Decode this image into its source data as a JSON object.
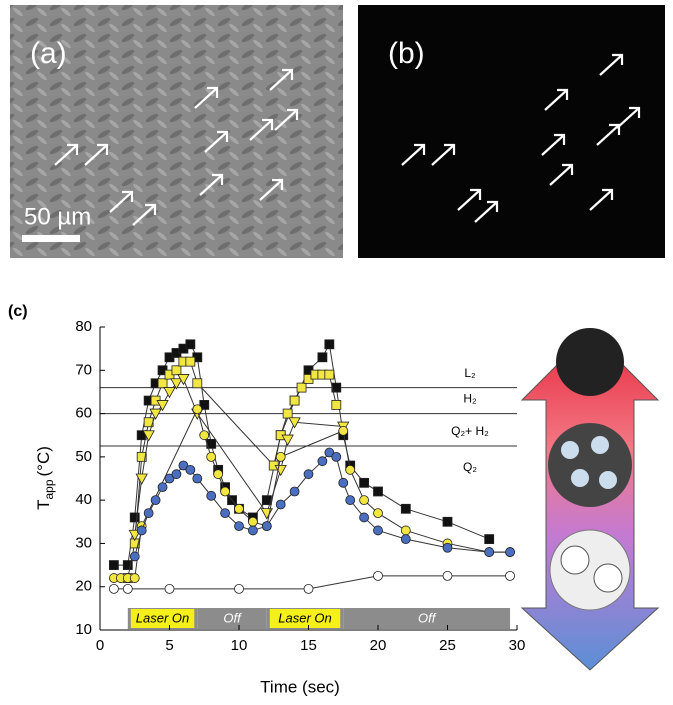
{
  "panels": {
    "a": {
      "label": "(a)",
      "scale_bar": "50 µm"
    },
    "b": {
      "label": "(b)"
    },
    "c": {
      "label": "(c)"
    }
  },
  "chart_data": {
    "type": "line",
    "xlabel": "Time (sec)",
    "ylabel": "T",
    "ylabel_sub": "app",
    "ylabel_unit": "(°C)",
    "xlim": [
      0,
      30
    ],
    "xticks": [
      0,
      5,
      10,
      15,
      20,
      25,
      30
    ],
    "ylim": [
      10,
      80
    ],
    "yticks": [
      10,
      20,
      30,
      40,
      50,
      60,
      70,
      80
    ],
    "phase_lines": [
      {
        "value": 66,
        "label": "L₂"
      },
      {
        "value": 60,
        "label": "H₂"
      },
      {
        "value": 52.5,
        "label": "Q₂+ H₂"
      }
    ],
    "phase_region_label": "Q₂",
    "laser_periods": [
      {
        "label": "Laser On",
        "start": 2,
        "end": 7,
        "color": "#f5ef1a"
      },
      {
        "label": "Off",
        "start": 7,
        "end": 12,
        "color": "#8c8c8c"
      },
      {
        "label": "Laser On",
        "start": 12,
        "end": 17.5,
        "color": "#f5ef1a"
      },
      {
        "label": "Off",
        "start": 17.5,
        "end": 29.5,
        "color": "#8c8c8c"
      }
    ],
    "series": [
      {
        "color": "#111111",
        "marker": "square",
        "x": [
          1,
          2,
          2.5,
          3,
          3.5,
          4,
          4.5,
          5,
          5.5,
          6,
          6.5,
          7,
          7.5,
          8,
          8.5,
          9,
          9.5,
          10,
          11,
          12,
          13,
          14,
          15,
          16,
          16.5,
          17,
          17.5,
          18,
          19,
          20,
          22,
          25,
          28
        ],
        "values": [
          25,
          25,
          36,
          55,
          63,
          67,
          70,
          73,
          74,
          75,
          76,
          73,
          62,
          53,
          47,
          43,
          40,
          38,
          36,
          40,
          55,
          63,
          70,
          73,
          76,
          66,
          55,
          48,
          44,
          42,
          38,
          35,
          31
        ]
      },
      {
        "color": "#f2e640",
        "marker": "square",
        "x": [
          2,
          2.5,
          3,
          3.5,
          4,
          4.5,
          5,
          5.5,
          6,
          6.5,
          7,
          12.5,
          13,
          13.5,
          14,
          14.5,
          15,
          15.5,
          16,
          16.5,
          17
        ],
        "values": [
          22,
          30,
          50,
          58,
          63,
          67,
          69,
          70,
          72,
          72,
          67,
          48,
          55,
          60,
          63,
          66,
          68,
          69,
          69,
          69,
          62
        ]
      },
      {
        "color": "#f2e640",
        "marker": "triangle",
        "x": [
          2.5,
          3,
          3.5,
          4,
          4.5,
          5,
          5.5,
          6,
          7,
          12,
          13,
          13.5,
          14,
          17.5
        ],
        "values": [
          32,
          45,
          55,
          60,
          62,
          65,
          67,
          68,
          60,
          37,
          47,
          54,
          58,
          57
        ]
      },
      {
        "color": "#f2e640",
        "marker": "circle",
        "x": [
          1,
          1.5,
          2,
          2.5,
          3,
          7,
          7.5,
          8,
          8.5,
          9,
          10,
          11,
          12,
          13,
          17.5,
          18,
          19,
          20,
          22,
          25,
          28,
          29.5
        ],
        "values": [
          22,
          22,
          22,
          22,
          34,
          61,
          55,
          50,
          46,
          42,
          38,
          35,
          34,
          50,
          56,
          47,
          40,
          37,
          33,
          30,
          28,
          28
        ]
      },
      {
        "color": "#4a6fc0",
        "marker": "circle",
        "x": [
          2.5,
          3,
          3.5,
          4,
          4.5,
          5,
          5.5,
          6,
          6.5,
          7,
          8,
          9,
          10,
          11,
          12,
          13,
          14,
          15,
          16,
          16.5,
          17,
          17.5,
          18,
          19,
          20,
          22,
          25,
          28,
          29.5
        ],
        "values": [
          27,
          33,
          37,
          40,
          43,
          45,
          46,
          48,
          47,
          45,
          41,
          37,
          34,
          33,
          34,
          39,
          42,
          46,
          49,
          51,
          50,
          44,
          40,
          36,
          33,
          31,
          29,
          28,
          28
        ]
      },
      {
        "color": "#ffffff",
        "marker": "circle",
        "x": [
          1,
          2,
          5,
          10,
          15,
          20,
          25,
          29.5
        ],
        "values": [
          19.5,
          19.5,
          19.5,
          19.5,
          19.5,
          22.5,
          22.5,
          22.5
        ]
      }
    ]
  }
}
